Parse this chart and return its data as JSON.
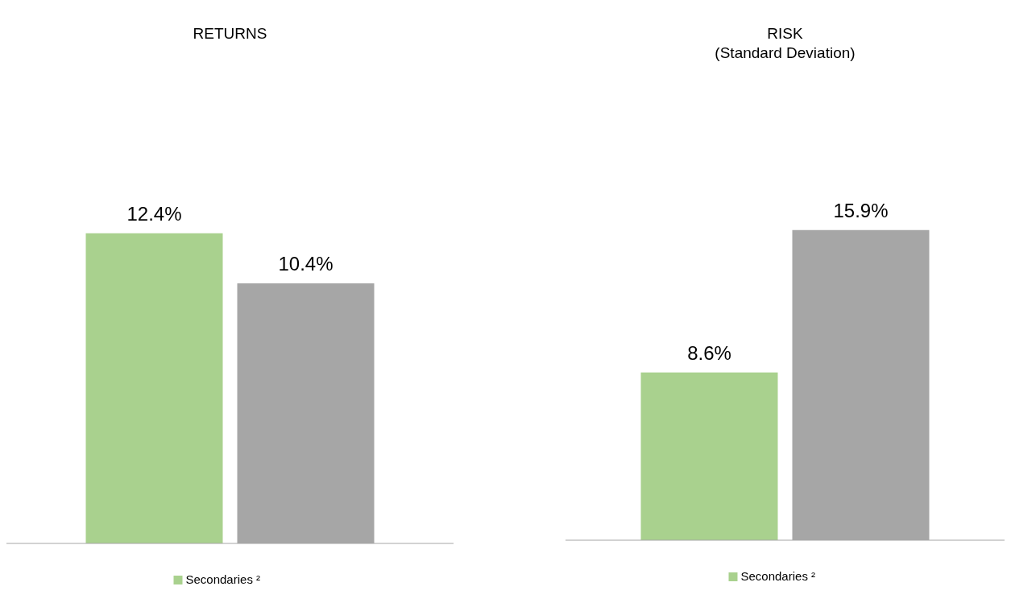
{
  "chart_data": [
    {
      "type": "bar",
      "title": "RETURNS",
      "categories": [
        null
      ],
      "series": [
        {
          "name": "Secondaries ²",
          "color": "#a9d18e",
          "values": [
            12.4
          ],
          "value_labels": [
            "12.4%"
          ]
        },
        {
          "color": "#a6a6a6",
          "values": [
            10.4
          ],
          "value_labels": [
            "10.4%"
          ]
        }
      ],
      "legend": "bottom"
    },
    {
      "type": "bar",
      "title": "RISK\n(Standard Deviation)",
      "categories": [
        null
      ],
      "series": [
        {
          "name": "Secondaries ²",
          "color": "#a9d18e",
          "values": [
            8.6
          ],
          "value_labels": [
            "8.6%"
          ]
        },
        {
          "color": "#a6a6a6",
          "values": [
            15.9
          ],
          "value_labels": [
            "15.9%"
          ]
        }
      ],
      "legend": "bottom"
    }
  ]
}
